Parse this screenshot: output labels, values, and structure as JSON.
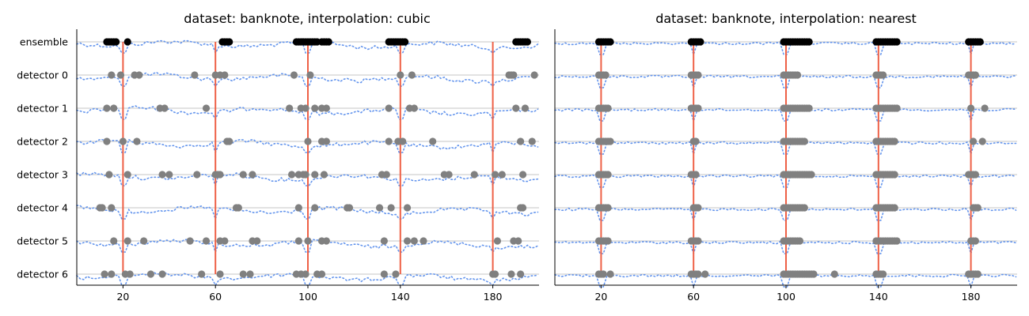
{
  "colors": {
    "gridline": "#b0b0b0",
    "axis": "#000000",
    "series_line": "#6495ed",
    "event_marker": "#808080",
    "ensemble_marker": "#000000",
    "change_point": "#ee6046"
  },
  "chart_data": [
    {
      "type": "scatter",
      "title": "dataset: banknote, interpolation: cubic",
      "xlim": [
        0,
        200
      ],
      "xticks": [
        20,
        60,
        100,
        140,
        180
      ],
      "rows": [
        "ensemble",
        "detector 0",
        "detector 1",
        "detector 2",
        "detector 3",
        "detector 4",
        "detector 5",
        "detector 6"
      ],
      "change_points": [
        20,
        60,
        100,
        140,
        180
      ],
      "grid": "horizontal",
      "detections": {
        "ensemble": [
          13,
          14,
          15,
          16,
          17,
          22,
          63,
          64,
          65,
          66,
          95,
          96,
          97,
          98,
          99,
          100,
          101,
          102,
          103,
          104,
          106,
          107,
          108,
          109,
          135,
          136,
          137,
          138,
          139,
          140,
          141,
          142,
          190,
          191,
          192,
          193,
          194,
          195
        ],
        "detector 0": [
          15,
          19,
          25,
          27,
          51,
          60,
          62,
          64,
          94,
          101,
          140,
          145,
          187,
          188,
          189,
          198
        ],
        "detector 1": [
          13,
          16,
          36,
          38,
          56,
          92,
          97,
          99,
          103,
          106,
          108,
          135,
          144,
          146,
          190,
          194
        ],
        "detector 2": [
          13,
          20,
          26,
          65,
          66,
          100,
          106,
          108,
          135,
          139,
          141,
          154,
          192,
          197
        ],
        "detector 3": [
          14,
          22,
          37,
          40,
          52,
          60,
          61,
          62,
          72,
          76,
          93,
          96,
          98,
          99,
          103,
          107,
          132,
          134,
          159,
          161,
          172,
          181,
          184,
          193
        ],
        "detector 4": [
          10,
          11,
          15,
          69,
          70,
          96,
          103,
          117,
          118,
          131,
          136,
          143,
          192,
          193
        ],
        "detector 5": [
          16,
          22,
          29,
          49,
          56,
          62,
          64,
          76,
          78,
          96,
          100,
          106,
          108,
          133,
          143,
          146,
          150,
          182,
          189,
          191
        ],
        "detector 6": [
          12,
          15,
          21,
          23,
          32,
          37,
          54,
          62,
          72,
          75,
          95,
          97,
          99,
          104,
          106,
          133,
          138,
          180,
          181,
          188,
          192
        ]
      }
    },
    {
      "type": "scatter",
      "title": "dataset: banknote, interpolation: nearest",
      "xlim": [
        0,
        200
      ],
      "xticks": [
        20,
        60,
        100,
        140,
        180
      ],
      "rows": [
        "ensemble",
        "detector 0",
        "detector 1",
        "detector 2",
        "detector 3",
        "detector 4",
        "detector 5",
        "detector 6"
      ],
      "change_points": [
        20,
        60,
        100,
        140,
        180
      ],
      "grid": "horizontal",
      "detections": {
        "ensemble": [
          19,
          20,
          21,
          22,
          23,
          24,
          59,
          60,
          61,
          62,
          63,
          99,
          100,
          101,
          102,
          103,
          104,
          105,
          106,
          107,
          108,
          109,
          110,
          139,
          140,
          141,
          142,
          143,
          144,
          145,
          146,
          147,
          148,
          179,
          180,
          181,
          182,
          183,
          184
        ],
        "detector 0": [
          19,
          20,
          21,
          22,
          59,
          60,
          61,
          62,
          99,
          100,
          101,
          102,
          103,
          104,
          105,
          139,
          140,
          141,
          142,
          179,
          180,
          181,
          182
        ],
        "detector 1": [
          19,
          20,
          21,
          22,
          23,
          59,
          60,
          61,
          62,
          99,
          100,
          101,
          102,
          103,
          104,
          105,
          106,
          107,
          108,
          109,
          110,
          139,
          140,
          141,
          142,
          143,
          144,
          145,
          146,
          147,
          148,
          180,
          186
        ],
        "detector 2": [
          19,
          20,
          21,
          22,
          23,
          24,
          60,
          61,
          99,
          100,
          101,
          102,
          103,
          104,
          105,
          106,
          107,
          108,
          139,
          140,
          141,
          142,
          143,
          144,
          145,
          146,
          147,
          181,
          185
        ],
        "detector 3": [
          19,
          20,
          21,
          22,
          23,
          59,
          60,
          61,
          99,
          100,
          101,
          102,
          103,
          104,
          105,
          106,
          107,
          108,
          109,
          110,
          111,
          139,
          140,
          141,
          142,
          143,
          144,
          145,
          146,
          147,
          179,
          180,
          181,
          182
        ],
        "detector 4": [
          19,
          20,
          21,
          22,
          23,
          60,
          61,
          62,
          99,
          100,
          101,
          102,
          103,
          104,
          105,
          106,
          107,
          108,
          139,
          140,
          141,
          142,
          143,
          144,
          145,
          146,
          147,
          181,
          182,
          183
        ],
        "detector 5": [
          19,
          20,
          21,
          22,
          23,
          59,
          60,
          61,
          62,
          99,
          100,
          101,
          102,
          103,
          104,
          105,
          106,
          139,
          140,
          141,
          142,
          143,
          144,
          145,
          146,
          147,
          148,
          180,
          181,
          182
        ],
        "detector 6": [
          19,
          20,
          21,
          24,
          59,
          60,
          61,
          62,
          65,
          99,
          100,
          101,
          102,
          103,
          104,
          105,
          106,
          107,
          108,
          109,
          110,
          111,
          112,
          121,
          139,
          140,
          141,
          142,
          179,
          180,
          181,
          182,
          183
        ]
      }
    }
  ]
}
